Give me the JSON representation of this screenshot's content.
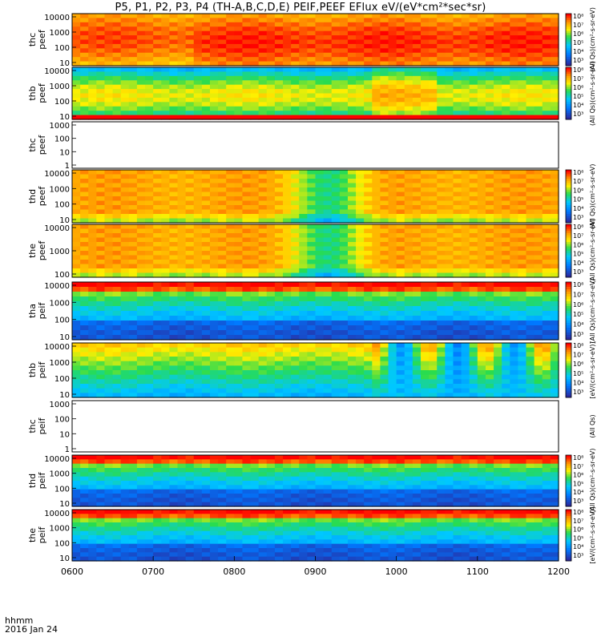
{
  "title": "P5, P1, P2, P3, P4 (TH-A,B,C,D,E) PEIF,PEEF EFlux eV/(eV*cm²*sec*sr)",
  "footer": {
    "time_label": "hhmm",
    "date_label": "2016 Jan 24"
  },
  "colors": {
    "hot": "#ff0000",
    "warm": "#ffcc00",
    "mid": "#22dd44",
    "cool": "#00bbff",
    "cold": "#2a2aa0",
    "floor": "#000000"
  },
  "chart_data": {
    "type": "heatmap",
    "x_ticks": [
      "0600",
      "0700",
      "0800",
      "0900",
      "1000",
      "1100",
      "1200"
    ],
    "x_range": [
      "0600",
      "1200"
    ],
    "panels": [
      {
        "id": "thc-peef",
        "label_line1": "thc",
        "label_line2": "peef",
        "yticks": [
          "10000",
          "1000",
          "100",
          "10"
        ],
        "colorbar": "10⁸ 10⁷ 10⁶ 10⁵ 10⁴ 10³",
        "colorbar_unit": "(All Qs)(cm²-s-sr-eV)",
        "profile": "hot-electron",
        "empty": false
      },
      {
        "id": "thb-peef",
        "label_line1": "thb",
        "label_line2": "peef",
        "yticks": [
          "10000",
          "1000",
          "100",
          "10"
        ],
        "colorbar": "10⁸ 10⁷ 10⁶ 10⁵ 10⁴ 10³",
        "colorbar_unit": "(All Qs)(cm²-s-sr-eV)",
        "profile": "mixed-electron",
        "empty": false
      },
      {
        "id": "thc-peef-2",
        "label_line1": "thc",
        "label_line2": "peef",
        "yticks": [
          "1000",
          "100",
          "10",
          "1"
        ],
        "colorbar": "",
        "colorbar_unit": "",
        "profile": "none",
        "empty": true
      },
      {
        "id": "thd-peef",
        "label_line1": "thd",
        "label_line2": "peef",
        "yticks": [
          "10000",
          "1000",
          "100",
          "10"
        ],
        "colorbar": "10⁸ 10⁷ 10⁶ 10⁵ 10⁴ 10³",
        "colorbar_unit": "(All Qs)(cm²-s-sr-eV)",
        "profile": "electron-dip",
        "empty": false
      },
      {
        "id": "the-peef",
        "label_line1": "the",
        "label_line2": "peef",
        "yticks": [
          "10000",
          "1000",
          "100"
        ],
        "colorbar": "10⁸ 10⁷ 10⁶ 10⁵ 10⁴ 10³",
        "colorbar_unit": "(All Qs)(cm²-s-sr-eV)",
        "profile": "electron-dip",
        "empty": false
      },
      {
        "id": "tha-peif",
        "label_line1": "tha",
        "label_line2": "peif",
        "yticks": [
          "10000",
          "1000",
          "100",
          "10"
        ],
        "colorbar": "10⁸ 10⁷ 10⁶ 10⁵ 10⁴ 10³",
        "colorbar_unit": "(All Qs)(cm²-s-sr-eV)",
        "profile": "ion",
        "empty": false
      },
      {
        "id": "thb-peif",
        "label_line1": "thb",
        "label_line2": "peif",
        "yticks": [
          "10000",
          "1000",
          "100",
          "10"
        ],
        "colorbar": "10⁸ 10⁷ 10⁶ 10⁵ 10⁴ 10³",
        "colorbar_unit": "[eV/(cm²-s-sr-eV)]",
        "profile": "ion-mixed",
        "empty": false
      },
      {
        "id": "thc-peif",
        "label_line1": "thc",
        "label_line2": "peif",
        "yticks": [
          "1000",
          "100",
          "10",
          "1"
        ],
        "colorbar": "",
        "colorbar_unit": "(All Qs)",
        "profile": "none",
        "empty": true
      },
      {
        "id": "thd-peif",
        "label_line1": "thd",
        "label_line2": "peif",
        "yticks": [
          "10000",
          "1000",
          "100",
          "10"
        ],
        "colorbar": "10⁸ 10⁷ 10⁶ 10⁵ 10⁴ 10³",
        "colorbar_unit": "(All Qs)(cm²-s-sr-eV)",
        "profile": "ion",
        "empty": false
      },
      {
        "id": "the-peif",
        "label_line1": "the",
        "label_line2": "peif",
        "yticks": [
          "10000",
          "1000",
          "100",
          "10"
        ],
        "colorbar": "10⁸ 10⁷ 10⁶ 10⁵ 10⁴ 10³",
        "colorbar_unit": "[eV/(cm²-s-sr-eV)]",
        "profile": "ion",
        "empty": false
      }
    ]
  }
}
